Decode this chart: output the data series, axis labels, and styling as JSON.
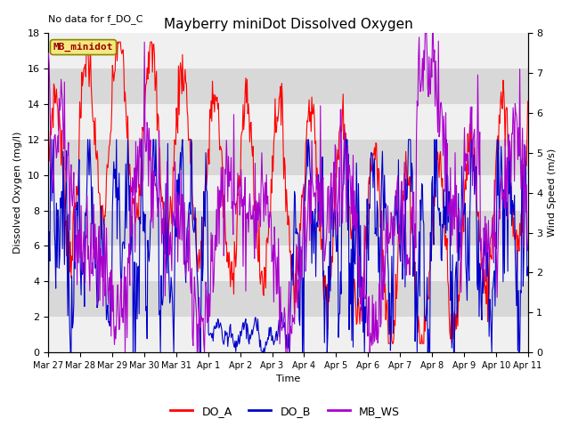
{
  "title": "Mayberry miniDot Dissolved Oxygen",
  "no_data_text": "No data for f_DO_C",
  "legend_box_text": "MB_minidot",
  "ylabel_left": "Dissolved Oxygen (mg/l)",
  "ylabel_right": "Wind Speed (m/s)",
  "xlabel": "Time",
  "ylim_left": [
    0,
    18
  ],
  "ylim_right": [
    0.0,
    8.0
  ],
  "yticks_left": [
    0,
    2,
    4,
    6,
    8,
    10,
    12,
    14,
    16,
    18
  ],
  "yticks_right": [
    0.0,
    1.0,
    2.0,
    3.0,
    4.0,
    5.0,
    6.0,
    7.0,
    8.0
  ],
  "color_DO_A": "#ff0000",
  "color_DO_B": "#0000cc",
  "color_MB_WS": "#aa00cc",
  "figure_bg": "#ffffff",
  "plot_bg": "#e8e8e8",
  "band_light": "#f0f0f0",
  "band_dark": "#d8d8d8",
  "legend_labels": [
    "DO_A",
    "DO_B",
    "MB_WS"
  ],
  "x_tick_labels": [
    "Mar 27",
    "Mar 28",
    "Mar 29",
    "Mar 30",
    "Mar 31",
    "Apr 1",
    "Apr 2",
    "Apr 3",
    "Apr 4",
    "Apr 5",
    "Apr 6",
    "Apr 7",
    "Apr 8",
    "Apr 9",
    "Apr 10",
    "Apr 11"
  ],
  "n_days": 15,
  "figsize": [
    6.4,
    4.8
  ],
  "dpi": 100
}
